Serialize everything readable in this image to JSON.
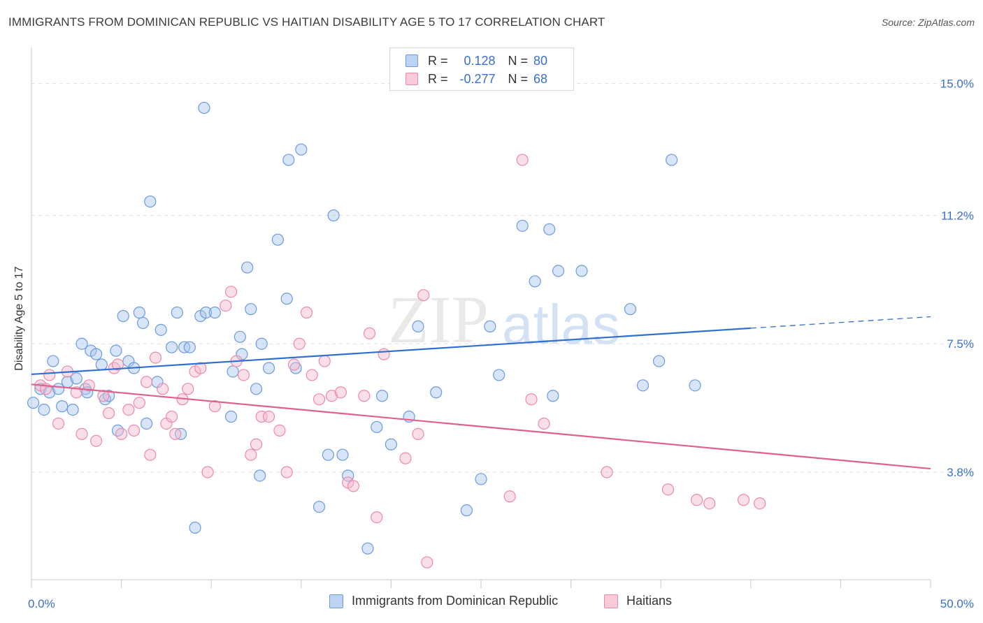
{
  "title": "IMMIGRANTS FROM DOMINICAN REPUBLIC VS HAITIAN DISABILITY AGE 5 TO 17 CORRELATION CHART",
  "source": "Source: ZipAtlas.com",
  "watermark": {
    "zip": "ZIP",
    "atlas": "atlas"
  },
  "legend": {
    "r_label": "R =",
    "n_label": "N =",
    "rows": [
      {
        "r": "0.128",
        "n": "80"
      },
      {
        "r": "-0.277",
        "n": "68"
      }
    ]
  },
  "colors": {
    "blue_fill": "#a9c6ef",
    "blue_stroke": "#6a9be0",
    "blue_line": "#2f6fd0",
    "pink_fill": "#f6b8cc",
    "pink_stroke": "#ea8aaa",
    "pink_line": "#e0608e",
    "axis_text": "#3a6fcf",
    "grid": "#dddddd"
  },
  "chart_data": {
    "type": "scatter",
    "title": "IMMIGRANTS FROM DOMINICAN REPUBLIC VS HAITIAN DISABILITY AGE 5 TO 17 CORRELATION CHART",
    "xlabel": "",
    "ylabel": "Disability Age 5 to 17",
    "xlim": [
      0,
      50
    ],
    "ylim": [
      0.7,
      16.0
    ],
    "x_tick_labels": [
      "0.0%",
      "50.0%"
    ],
    "y_ticks": [
      3.8,
      7.5,
      11.2,
      15.0
    ],
    "y_tick_labels": [
      "3.8%",
      "7.5%",
      "11.2%",
      "15.0%"
    ],
    "series": [
      {
        "name": "Immigrants from Dominican Republic",
        "color": "#6a9be0",
        "trend": {
          "x0": 0,
          "y0": 6.62,
          "x1": 40,
          "y1": 7.95,
          "dash_to_x": 50,
          "dash_to_y": 8.28
        },
        "points": [
          [
            0.1,
            5.8
          ],
          [
            0.5,
            6.2
          ],
          [
            0.7,
            5.6
          ],
          [
            1.0,
            6.1
          ],
          [
            1.2,
            7.0
          ],
          [
            1.5,
            6.2
          ],
          [
            1.7,
            5.7
          ],
          [
            2.0,
            6.4
          ],
          [
            2.3,
            5.6
          ],
          [
            2.5,
            6.5
          ],
          [
            2.8,
            7.5
          ],
          [
            3.0,
            6.2
          ],
          [
            3.1,
            6.1
          ],
          [
            3.3,
            7.3
          ],
          [
            3.6,
            7.2
          ],
          [
            3.9,
            6.9
          ],
          [
            4.1,
            5.9
          ],
          [
            4.3,
            6.0
          ],
          [
            4.7,
            7.3
          ],
          [
            4.8,
            5.0
          ],
          [
            5.1,
            8.3
          ],
          [
            5.4,
            7.0
          ],
          [
            5.7,
            6.8
          ],
          [
            6.0,
            8.4
          ],
          [
            6.2,
            8.1
          ],
          [
            6.4,
            5.2
          ],
          [
            6.6,
            11.6
          ],
          [
            7.0,
            6.4
          ],
          [
            7.2,
            7.9
          ],
          [
            7.8,
            7.4
          ],
          [
            8.1,
            8.4
          ],
          [
            8.3,
            4.9
          ],
          [
            8.5,
            7.4
          ],
          [
            8.8,
            7.4
          ],
          [
            9.1,
            2.2
          ],
          [
            9.4,
            8.3
          ],
          [
            9.6,
            14.3
          ],
          [
            9.7,
            8.4
          ],
          [
            10.2,
            8.4
          ],
          [
            11.1,
            5.4
          ],
          [
            11.2,
            6.7
          ],
          [
            11.6,
            7.7
          ],
          [
            11.7,
            7.2
          ],
          [
            12.0,
            9.7
          ],
          [
            12.2,
            8.5
          ],
          [
            12.5,
            6.2
          ],
          [
            12.7,
            3.7
          ],
          [
            12.8,
            7.5
          ],
          [
            13.2,
            6.8
          ],
          [
            13.7,
            10.5
          ],
          [
            14.2,
            8.8
          ],
          [
            14.3,
            12.8
          ],
          [
            14.7,
            6.8
          ],
          [
            15.0,
            13.1
          ],
          [
            16.0,
            2.8
          ],
          [
            16.5,
            4.3
          ],
          [
            16.8,
            11.2
          ],
          [
            17.3,
            4.3
          ],
          [
            17.6,
            3.7
          ],
          [
            18.7,
            1.6
          ],
          [
            19.2,
            5.1
          ],
          [
            19.5,
            6.0
          ],
          [
            20.0,
            4.6
          ],
          [
            21.0,
            5.4
          ],
          [
            21.5,
            8.0
          ],
          [
            22.5,
            6.1
          ],
          [
            24.2,
            2.7
          ],
          [
            25.0,
            3.6
          ],
          [
            25.5,
            8.0
          ],
          [
            26.0,
            6.6
          ],
          [
            27.3,
            10.9
          ],
          [
            28.0,
            9.3
          ],
          [
            28.8,
            10.8
          ],
          [
            29.0,
            6.0
          ],
          [
            29.3,
            9.6
          ],
          [
            30.6,
            9.6
          ],
          [
            33.3,
            8.5
          ],
          [
            34.0,
            6.3
          ],
          [
            34.9,
            7.0
          ],
          [
            35.6,
            12.8
          ],
          [
            36.9,
            6.3
          ]
        ]
      },
      {
        "name": "Haitians",
        "color": "#ea8aaa",
        "trend": {
          "x0": 0,
          "y0": 6.33,
          "x1": 50,
          "y1": 3.9
        },
        "points": [
          [
            0.5,
            6.3
          ],
          [
            0.8,
            6.2
          ],
          [
            1.0,
            6.6
          ],
          [
            1.5,
            5.2
          ],
          [
            2.0,
            6.7
          ],
          [
            2.5,
            6.1
          ],
          [
            2.8,
            4.9
          ],
          [
            3.2,
            6.3
          ],
          [
            3.6,
            4.7
          ],
          [
            4.0,
            6.0
          ],
          [
            4.3,
            5.5
          ],
          [
            4.6,
            6.8
          ],
          [
            4.8,
            6.9
          ],
          [
            5.0,
            4.9
          ],
          [
            5.4,
            5.6
          ],
          [
            5.7,
            5.0
          ],
          [
            6.0,
            5.8
          ],
          [
            6.4,
            6.4
          ],
          [
            6.6,
            4.3
          ],
          [
            6.9,
            7.1
          ],
          [
            7.3,
            6.2
          ],
          [
            7.5,
            5.2
          ],
          [
            7.8,
            5.4
          ],
          [
            8.0,
            4.9
          ],
          [
            8.4,
            5.9
          ],
          [
            8.7,
            6.2
          ],
          [
            9.1,
            6.7
          ],
          [
            9.4,
            6.8
          ],
          [
            9.8,
            3.8
          ],
          [
            10.2,
            5.7
          ],
          [
            10.8,
            8.6
          ],
          [
            11.1,
            9.0
          ],
          [
            11.4,
            7.0
          ],
          [
            11.8,
            6.6
          ],
          [
            12.2,
            4.3
          ],
          [
            12.5,
            4.6
          ],
          [
            12.8,
            5.4
          ],
          [
            13.2,
            5.4
          ],
          [
            13.8,
            5.0
          ],
          [
            14.2,
            3.8
          ],
          [
            14.6,
            6.9
          ],
          [
            14.9,
            7.5
          ],
          [
            15.3,
            8.4
          ],
          [
            15.6,
            6.6
          ],
          [
            16.0,
            5.9
          ],
          [
            16.3,
            7.0
          ],
          [
            16.7,
            6.0
          ],
          [
            17.2,
            6.1
          ],
          [
            17.6,
            3.5
          ],
          [
            17.9,
            3.4
          ],
          [
            18.5,
            6.0
          ],
          [
            18.8,
            7.8
          ],
          [
            19.2,
            2.5
          ],
          [
            19.6,
            7.2
          ],
          [
            20.8,
            4.2
          ],
          [
            21.5,
            4.9
          ],
          [
            21.8,
            8.9
          ],
          [
            22.0,
            1.2
          ],
          [
            26.6,
            3.1
          ],
          [
            27.3,
            12.8
          ],
          [
            27.8,
            5.9
          ],
          [
            28.5,
            5.2
          ],
          [
            32.0,
            3.8
          ],
          [
            35.4,
            3.3
          ],
          [
            37.0,
            3.0
          ],
          [
            37.7,
            2.9
          ],
          [
            39.6,
            3.0
          ],
          [
            40.5,
            2.9
          ]
        ]
      }
    ]
  },
  "bottom_legend": [
    "Immigrants from Dominican Republic",
    "Haitians"
  ]
}
